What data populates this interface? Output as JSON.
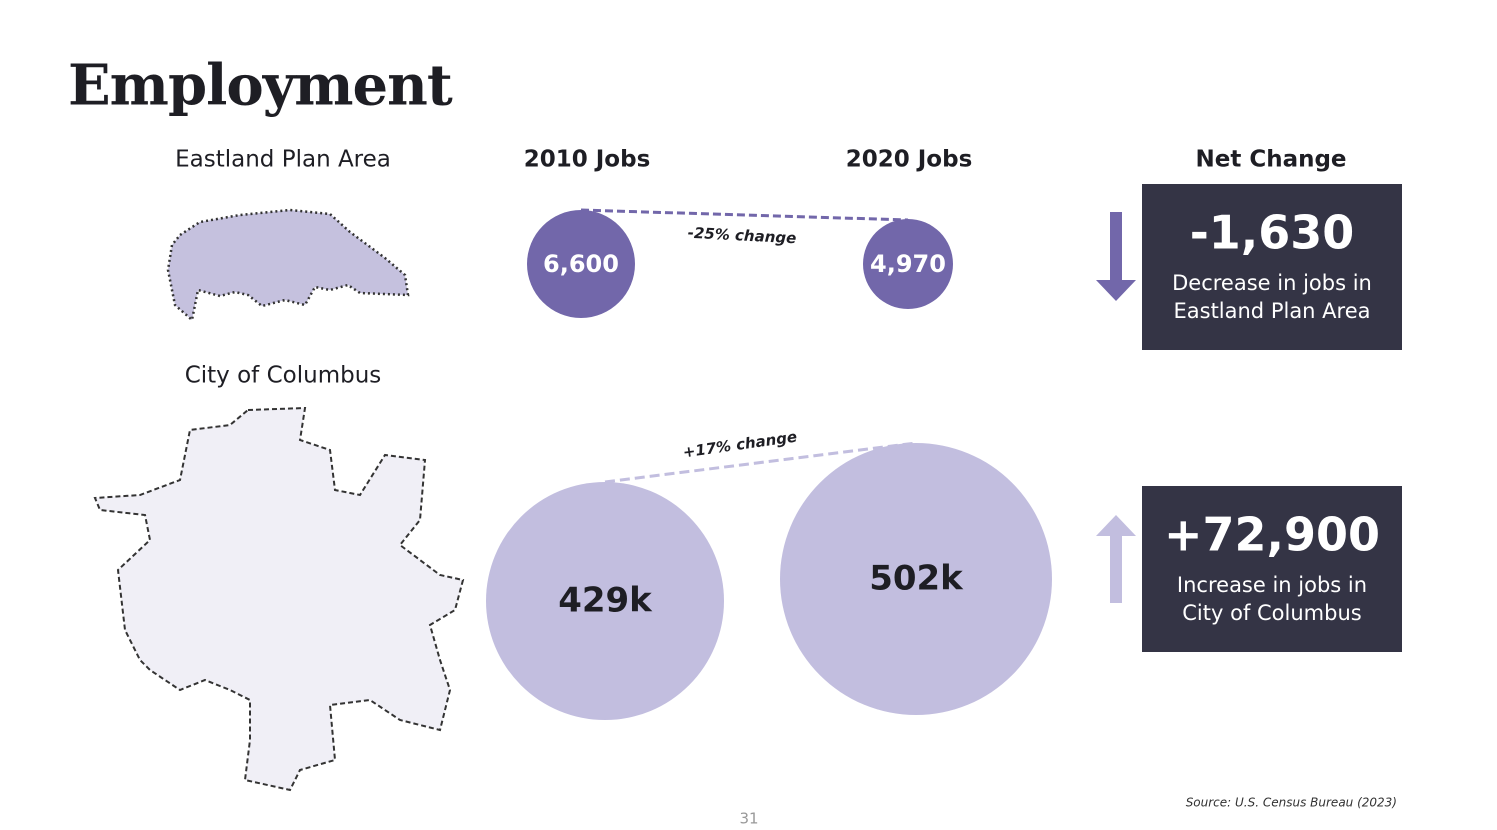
{
  "title": "Employment",
  "headers": [
    "2010 Jobs",
    "2020 Jobs",
    "Net Change"
  ],
  "rows": [
    {
      "area": "Eastland Plan Area",
      "jobs_2010": "6,600",
      "jobs_2020": "4,970",
      "change_label": "-25% change",
      "net_change": "-1,630",
      "description": [
        "Decrease in jobs in",
        "Eastland Plan Area"
      ]
    },
    {
      "area": "City of Columbus",
      "jobs_2010": "429k",
      "jobs_2020": "502k",
      "change_label": "+17% change",
      "net_change": "+72,900",
      "description": [
        "Increase in jobs in",
        "City of Columbus"
      ]
    }
  ],
  "source": "Source: U.S. Census Bureau (2023)",
  "page_number": "31"
}
